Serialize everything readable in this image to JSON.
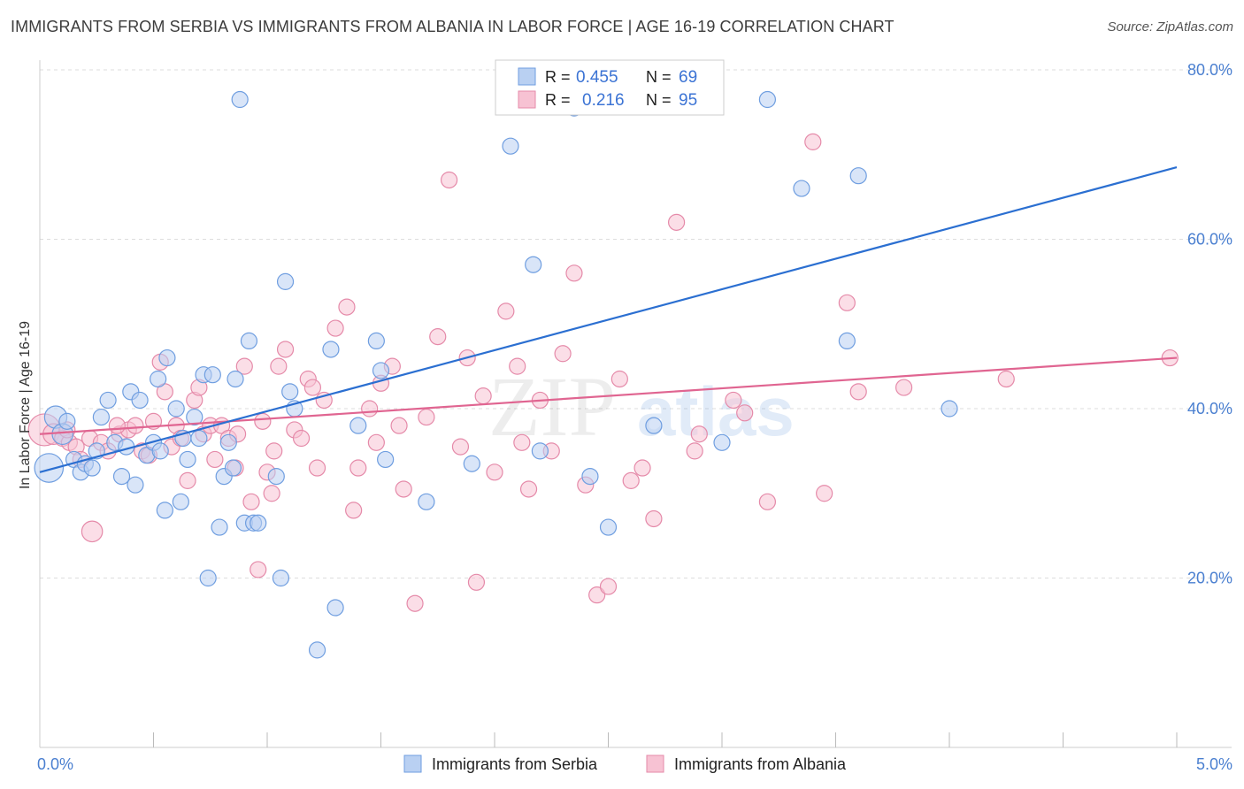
{
  "title": "IMMIGRANTS FROM SERBIA VS IMMIGRANTS FROM ALBANIA IN LABOR FORCE | AGE 16-19 CORRELATION CHART",
  "source": "Source: ZipAtlas.com",
  "watermark": {
    "zip": "ZIP",
    "atlas": "atlas"
  },
  "legend": {
    "r_label": "R = ",
    "n_label": "N = ",
    "serbia": {
      "r": "0.455",
      "n": "69"
    },
    "albania": {
      "r": "0.216",
      "n": "95"
    }
  },
  "colors": {
    "serbia_fill": "#b9d0f2",
    "serbia_stroke": "#6f9ee0",
    "serbia_line": "#2b6fd1",
    "albania_fill": "#f7c2d3",
    "albania_stroke": "#e58aa9",
    "albania_line": "#e06591",
    "grid": "#dddddd",
    "axis_text": "#4a7fd0"
  },
  "chart_data": {
    "type": "scatter",
    "title": "IMMIGRANTS FROM SERBIA VS IMMIGRANTS FROM ALBANIA IN LABOR FORCE | AGE 16-19 CORRELATION CHART",
    "xlabel": "",
    "ylabel": "In Labor Force | Age 16-19",
    "xlim": [
      0,
      5
    ],
    "ylim": [
      0,
      80
    ],
    "x_tick_labels": [
      "0.0%",
      "5.0%"
    ],
    "y_ticks": [
      20,
      40,
      60,
      80
    ],
    "y_tick_labels": [
      "20.0%",
      "40.0%",
      "60.0%",
      "80.0%"
    ],
    "grid": true,
    "legend_position": "top-center",
    "series": [
      {
        "name": "Immigrants from Serbia",
        "trend": {
          "x": [
            0.0,
            5.0
          ],
          "y": [
            32.5,
            68.5
          ]
        },
        "points": [
          [
            0.04,
            33.0,
            1.8
          ],
          [
            0.07,
            39.0,
            1.4
          ],
          [
            0.1,
            37.0,
            1.3
          ],
          [
            0.12,
            38.5,
            1.0
          ],
          [
            0.15,
            34.0,
            1.0
          ],
          [
            0.18,
            32.5,
            1.0
          ],
          [
            0.2,
            33.5,
            1.0
          ],
          [
            0.23,
            33.0,
            1.0
          ],
          [
            0.25,
            35.0,
            1.0
          ],
          [
            0.27,
            39.0,
            1.0
          ],
          [
            0.3,
            41.0,
            1.0
          ],
          [
            0.33,
            36.0,
            1.0
          ],
          [
            0.36,
            32.0,
            1.0
          ],
          [
            0.38,
            35.5,
            1.0
          ],
          [
            0.4,
            42.0,
            1.0
          ],
          [
            0.42,
            31.0,
            1.0
          ],
          [
            0.44,
            41.0,
            1.0
          ],
          [
            0.47,
            34.5,
            1.0
          ],
          [
            0.5,
            36.0,
            1.0
          ],
          [
            0.52,
            43.5,
            1.0
          ],
          [
            0.53,
            35.0,
            1.0
          ],
          [
            0.55,
            28.0,
            1.0
          ],
          [
            0.56,
            46.0,
            1.0
          ],
          [
            0.6,
            40.0,
            1.0
          ],
          [
            0.62,
            29.0,
            1.0
          ],
          [
            0.63,
            36.5,
            1.0
          ],
          [
            0.65,
            34.0,
            1.0
          ],
          [
            0.68,
            39.0,
            1.0
          ],
          [
            0.7,
            36.5,
            1.0
          ],
          [
            0.72,
            44.0,
            1.0
          ],
          [
            0.74,
            20.0,
            1.0
          ],
          [
            0.76,
            44.0,
            1.0
          ],
          [
            0.79,
            26.0,
            1.0
          ],
          [
            0.81,
            32.0,
            1.0
          ],
          [
            0.83,
            36.0,
            1.0
          ],
          [
            0.85,
            33.0,
            1.0
          ],
          [
            0.86,
            43.5,
            1.0
          ],
          [
            0.88,
            76.5,
            1.0
          ],
          [
            0.9,
            26.5,
            1.0
          ],
          [
            0.92,
            48.0,
            1.0
          ],
          [
            0.94,
            26.5,
            1.0
          ],
          [
            0.96,
            26.5,
            1.0
          ],
          [
            1.04,
            32.0,
            1.0
          ],
          [
            1.06,
            20.0,
            1.0
          ],
          [
            1.08,
            55.0,
            1.0
          ],
          [
            1.1,
            42.0,
            1.0
          ],
          [
            1.12,
            40.0,
            1.0
          ],
          [
            1.28,
            47.0,
            1.0
          ],
          [
            1.3,
            16.5,
            1.0
          ],
          [
            1.22,
            11.5,
            1.0
          ],
          [
            1.4,
            38.0,
            1.0
          ],
          [
            1.48,
            48.0,
            1.0
          ],
          [
            1.5,
            44.5,
            1.0
          ],
          [
            1.52,
            34.0,
            1.0
          ],
          [
            1.7,
            29.0,
            1.0
          ],
          [
            1.9,
            33.5,
            1.0
          ],
          [
            2.07,
            71.0,
            1.0
          ],
          [
            2.17,
            57.0,
            1.0
          ],
          [
            2.2,
            35.0,
            1.0
          ],
          [
            2.35,
            75.5,
            1.0
          ],
          [
            2.42,
            32.0,
            1.0
          ],
          [
            2.5,
            26.0,
            1.0
          ],
          [
            2.7,
            38.0,
            1.0
          ],
          [
            3.0,
            36.0,
            1.0
          ],
          [
            3.2,
            76.5,
            1.0
          ],
          [
            3.35,
            66.0,
            1.0
          ],
          [
            3.55,
            48.0,
            1.0
          ],
          [
            3.6,
            67.5,
            1.0
          ],
          [
            4.0,
            40.0,
            1.0
          ]
        ]
      },
      {
        "name": "Immigrants from Albania",
        "trend": {
          "x": [
            0.0,
            5.0
          ],
          "y": [
            37.0,
            46.0
          ]
        },
        "points": [
          [
            0.02,
            37.5,
            2.0
          ],
          [
            0.06,
            37.0,
            1.3
          ],
          [
            0.1,
            36.5,
            1.0
          ],
          [
            0.13,
            36.0,
            1.0
          ],
          [
            0.16,
            35.5,
            1.0
          ],
          [
            0.18,
            34.0,
            1.0
          ],
          [
            0.22,
            36.5,
            1.0
          ],
          [
            0.23,
            25.5,
            1.3
          ],
          [
            0.27,
            36.0,
            1.0
          ],
          [
            0.3,
            35.0,
            1.0
          ],
          [
            0.35,
            37.0,
            1.0
          ],
          [
            0.39,
            37.5,
            1.0
          ],
          [
            0.42,
            38.0,
            1.0
          ],
          [
            0.45,
            35.0,
            1.0
          ],
          [
            0.5,
            38.5,
            1.0
          ],
          [
            0.53,
            45.5,
            1.0
          ],
          [
            0.55,
            42.0,
            1.0
          ],
          [
            0.58,
            35.5,
            1.0
          ],
          [
            0.6,
            38.0,
            1.0
          ],
          [
            0.62,
            36.5,
            1.0
          ],
          [
            0.65,
            31.5,
            1.0
          ],
          [
            0.68,
            41.0,
            1.0
          ],
          [
            0.7,
            42.5,
            1.0
          ],
          [
            0.72,
            37.0,
            1.0
          ],
          [
            0.75,
            38.0,
            1.0
          ],
          [
            0.77,
            34.0,
            1.0
          ],
          [
            0.8,
            38.0,
            1.0
          ],
          [
            0.83,
            36.5,
            1.0
          ],
          [
            0.87,
            37.0,
            1.0
          ],
          [
            0.9,
            45.0,
            1.0
          ],
          [
            0.93,
            29.0,
            1.0
          ],
          [
            0.96,
            21.0,
            1.0
          ],
          [
            0.98,
            38.5,
            1.0
          ],
          [
            1.0,
            32.5,
            1.0
          ],
          [
            1.02,
            30.0,
            1.0
          ],
          [
            1.05,
            45.0,
            1.0
          ],
          [
            1.08,
            47.0,
            1.0
          ],
          [
            1.12,
            37.5,
            1.0
          ],
          [
            1.15,
            36.5,
            1.0
          ],
          [
            1.18,
            43.5,
            1.0
          ],
          [
            1.2,
            42.5,
            1.0
          ],
          [
            1.25,
            41.0,
            1.0
          ],
          [
            1.3,
            49.5,
            1.0
          ],
          [
            1.35,
            52.0,
            1.0
          ],
          [
            1.38,
            28.0,
            1.0
          ],
          [
            1.4,
            33.0,
            1.0
          ],
          [
            1.45,
            40.0,
            1.0
          ],
          [
            1.48,
            36.0,
            1.0
          ],
          [
            1.5,
            43.0,
            1.0
          ],
          [
            1.55,
            45.0,
            1.0
          ],
          [
            1.6,
            30.5,
            1.0
          ],
          [
            1.65,
            17.0,
            1.0
          ],
          [
            1.7,
            39.0,
            1.0
          ],
          [
            1.75,
            48.5,
            1.0
          ],
          [
            1.8,
            67.0,
            1.0
          ],
          [
            1.85,
            35.5,
            1.0
          ],
          [
            1.88,
            46.0,
            1.0
          ],
          [
            1.92,
            19.5,
            1.0
          ],
          [
            1.95,
            41.5,
            1.0
          ],
          [
            2.0,
            32.5,
            1.0
          ],
          [
            2.05,
            51.5,
            1.0
          ],
          [
            2.1,
            45.0,
            1.0
          ],
          [
            2.15,
            30.5,
            1.0
          ],
          [
            2.2,
            41.0,
            1.0
          ],
          [
            2.25,
            35.0,
            1.0
          ],
          [
            2.3,
            46.5,
            1.0
          ],
          [
            2.35,
            56.0,
            1.0
          ],
          [
            2.4,
            31.0,
            1.0
          ],
          [
            2.45,
            18.0,
            1.0
          ],
          [
            2.5,
            19.0,
            1.0
          ],
          [
            2.55,
            43.5,
            1.0
          ],
          [
            2.65,
            33.0,
            1.0
          ],
          [
            2.7,
            27.0,
            1.0
          ],
          [
            2.8,
            62.0,
            1.0
          ],
          [
            2.88,
            35.0,
            1.0
          ],
          [
            2.9,
            37.0,
            1.0
          ],
          [
            3.1,
            39.5,
            1.0
          ],
          [
            3.2,
            29.0,
            1.0
          ],
          [
            3.4,
            71.5,
            1.0
          ],
          [
            3.45,
            30.0,
            1.0
          ],
          [
            3.55,
            52.5,
            1.0
          ],
          [
            3.6,
            42.0,
            1.0
          ],
          [
            3.8,
            42.5,
            1.0
          ],
          [
            4.25,
            43.5,
            1.0
          ],
          [
            4.97,
            46.0,
            1.0
          ],
          [
            0.12,
            37.5,
            1.0
          ],
          [
            0.34,
            38.0,
            1.0
          ],
          [
            0.48,
            34.5,
            1.0
          ],
          [
            0.86,
            33.0,
            1.0
          ],
          [
            1.03,
            35.0,
            1.0
          ],
          [
            1.22,
            33.0,
            1.0
          ],
          [
            1.58,
            38.0,
            1.0
          ],
          [
            2.12,
            36.0,
            1.0
          ],
          [
            2.6,
            31.5,
            1.0
          ],
          [
            3.05,
            41.0,
            1.0
          ]
        ]
      }
    ]
  }
}
